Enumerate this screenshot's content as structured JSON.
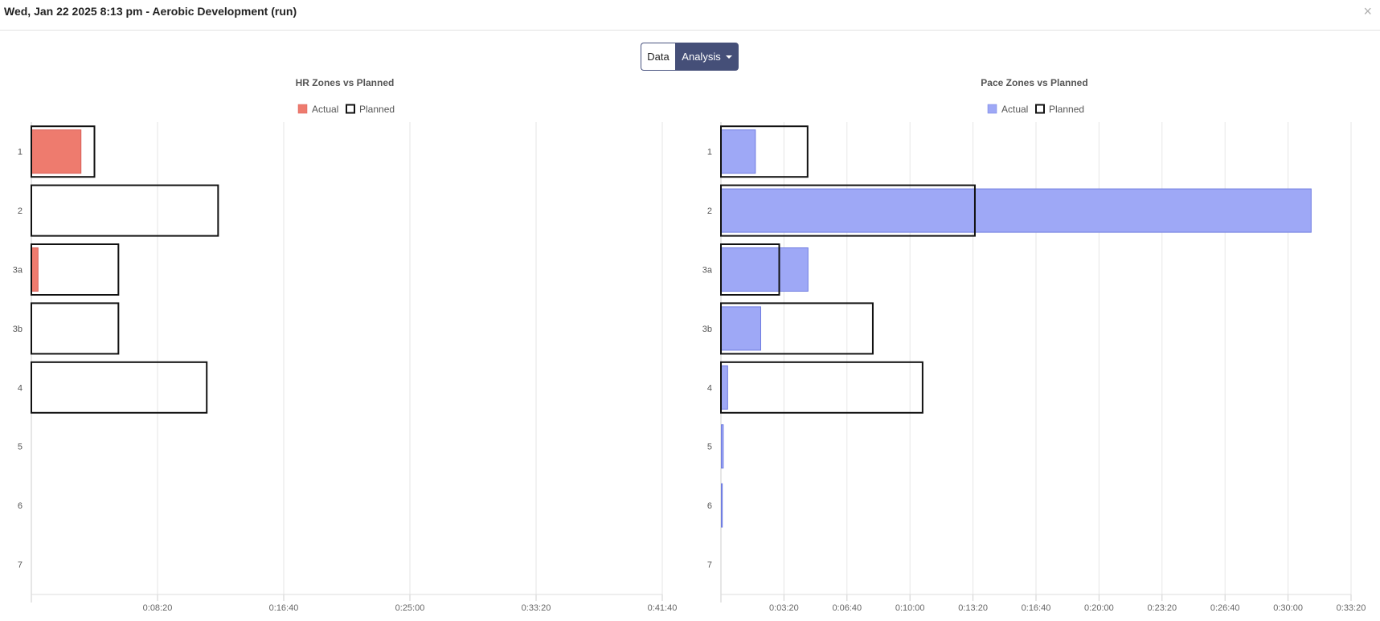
{
  "header": {
    "title": "Wed, Jan 22 2025 8:13 pm - Aerobic Development (run)",
    "close_icon": "×"
  },
  "toolbar": {
    "data_label": "Data",
    "analysis_label": "Analysis"
  },
  "chart_data": [
    {
      "type": "bar",
      "orientation": "horizontal",
      "title": "HR Zones vs Planned",
      "categories": [
        "1",
        "2",
        "3a",
        "3b",
        "4",
        "5",
        "6",
        "7"
      ],
      "xlim": [
        0,
        2500
      ],
      "xticks": [
        0,
        500,
        1000,
        1500,
        2000,
        2500
      ],
      "xtick_labels": [
        "",
        "0:08:20",
        "0:16:40",
        "0:25:00",
        "0:33:20",
        "0:41:40"
      ],
      "grid": true,
      "legend": "top-center",
      "series": [
        {
          "name": "Actual",
          "style": "filled",
          "color": "#ee7b6e",
          "stroke": "#d9605a",
          "values": [
            195,
            0,
            25,
            0,
            0,
            0,
            0,
            0
          ]
        },
        {
          "name": "Planned",
          "style": "outline",
          "color": "#111111",
          "values": [
            250,
            740,
            345,
            345,
            695,
            0,
            0,
            0
          ]
        }
      ]
    },
    {
      "type": "bar",
      "orientation": "horizontal",
      "title": "Pace Zones vs Planned",
      "categories": [
        "1",
        "2",
        "3a",
        "3b",
        "4",
        "5",
        "6",
        "7"
      ],
      "xlim": [
        0,
        2000
      ],
      "xticks": [
        0,
        200,
        400,
        600,
        800,
        1000,
        1200,
        1400,
        1600,
        1800,
        2000
      ],
      "xtick_labels": [
        "",
        "0:03:20",
        "0:06:40",
        "0:10:00",
        "0:13:20",
        "0:16:40",
        "0:20:00",
        "0:23:20",
        "0:26:40",
        "0:30:00",
        "0:33:20"
      ],
      "grid": true,
      "legend": "top-center",
      "series": [
        {
          "name": "Actual",
          "style": "filled",
          "color": "#9ea8f6",
          "stroke": "#6f7ce0",
          "values": [
            108,
            1872,
            275,
            125,
            20,
            6,
            3,
            0
          ]
        },
        {
          "name": "Planned",
          "style": "outline",
          "color": "#111111",
          "values": [
            275,
            806,
            185,
            482,
            640,
            0,
            0,
            0
          ]
        }
      ]
    }
  ]
}
